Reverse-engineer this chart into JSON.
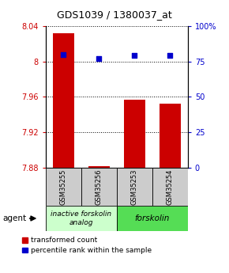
{
  "title": "GDS1039 / 1380037_at",
  "samples": [
    "GSM35255",
    "GSM35256",
    "GSM35253",
    "GSM35254"
  ],
  "red_values": [
    8.032,
    7.882,
    7.957,
    7.952
  ],
  "blue_values": [
    80,
    77,
    79,
    79
  ],
  "ylim_left": [
    7.88,
    8.04
  ],
  "ylim_right": [
    0,
    100
  ],
  "yticks_left": [
    7.88,
    7.92,
    7.96,
    8.0,
    8.04
  ],
  "yticks_right": [
    0,
    25,
    50,
    75,
    100
  ],
  "ytick_labels_left": [
    "7.88",
    "7.92",
    "7.96",
    "8",
    "8.04"
  ],
  "ytick_labels_right": [
    "0",
    "25",
    "50",
    "75",
    "100%"
  ],
  "bar_color": "#cc0000",
  "dot_color": "#0000cc",
  "group1_label": "inactive forskolin\nanalog",
  "group2_label": "forskolin",
  "group1_color": "#ccffcc",
  "group2_color": "#55dd55",
  "sample_box_color": "#cccccc",
  "agent_label": "agent",
  "legend_red": "transformed count",
  "legend_blue": "percentile rank within the sample",
  "title_fontsize": 9,
  "tick_fontsize": 7,
  "legend_fontsize": 6.5,
  "sample_fontsize": 6,
  "group_fontsize": 6.5
}
